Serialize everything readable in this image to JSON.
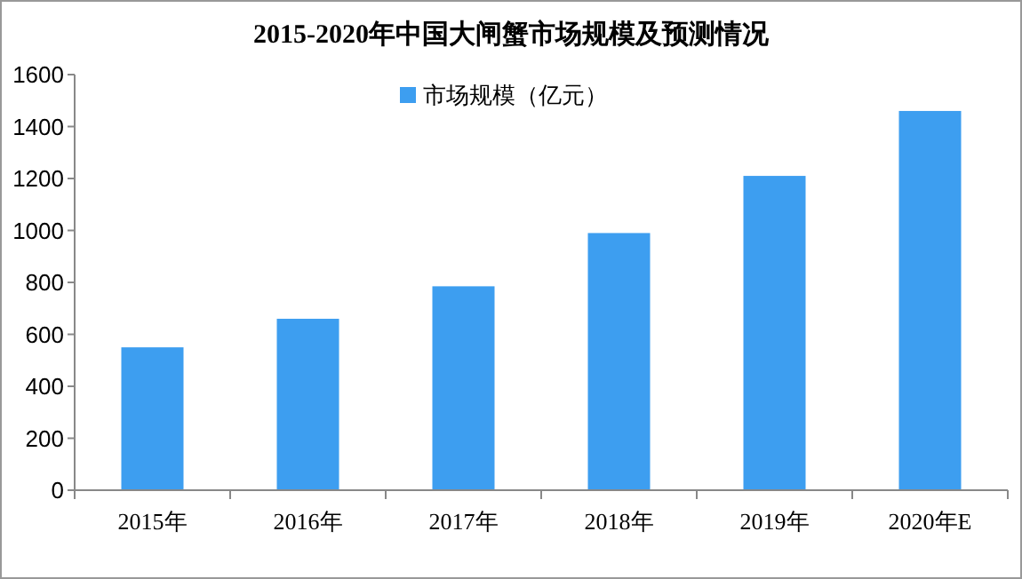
{
  "chart_data": {
    "type": "bar",
    "title": "2015-2020年中国大闸蟹市场规模及预测情况",
    "categories": [
      "2015年",
      "2016年",
      "2017年",
      "2018年",
      "2019年",
      "2020年E"
    ],
    "series": [
      {
        "name": "市场规模（亿元）",
        "color": "#3d9ef0",
        "values": [
          550,
          660,
          785,
          990,
          1210,
          1460
        ]
      }
    ],
    "ylim": [
      0,
      1600
    ],
    "yticks": [
      0,
      200,
      400,
      600,
      800,
      1000,
      1200,
      1400,
      1600
    ],
    "grid": false,
    "legend": "top"
  }
}
